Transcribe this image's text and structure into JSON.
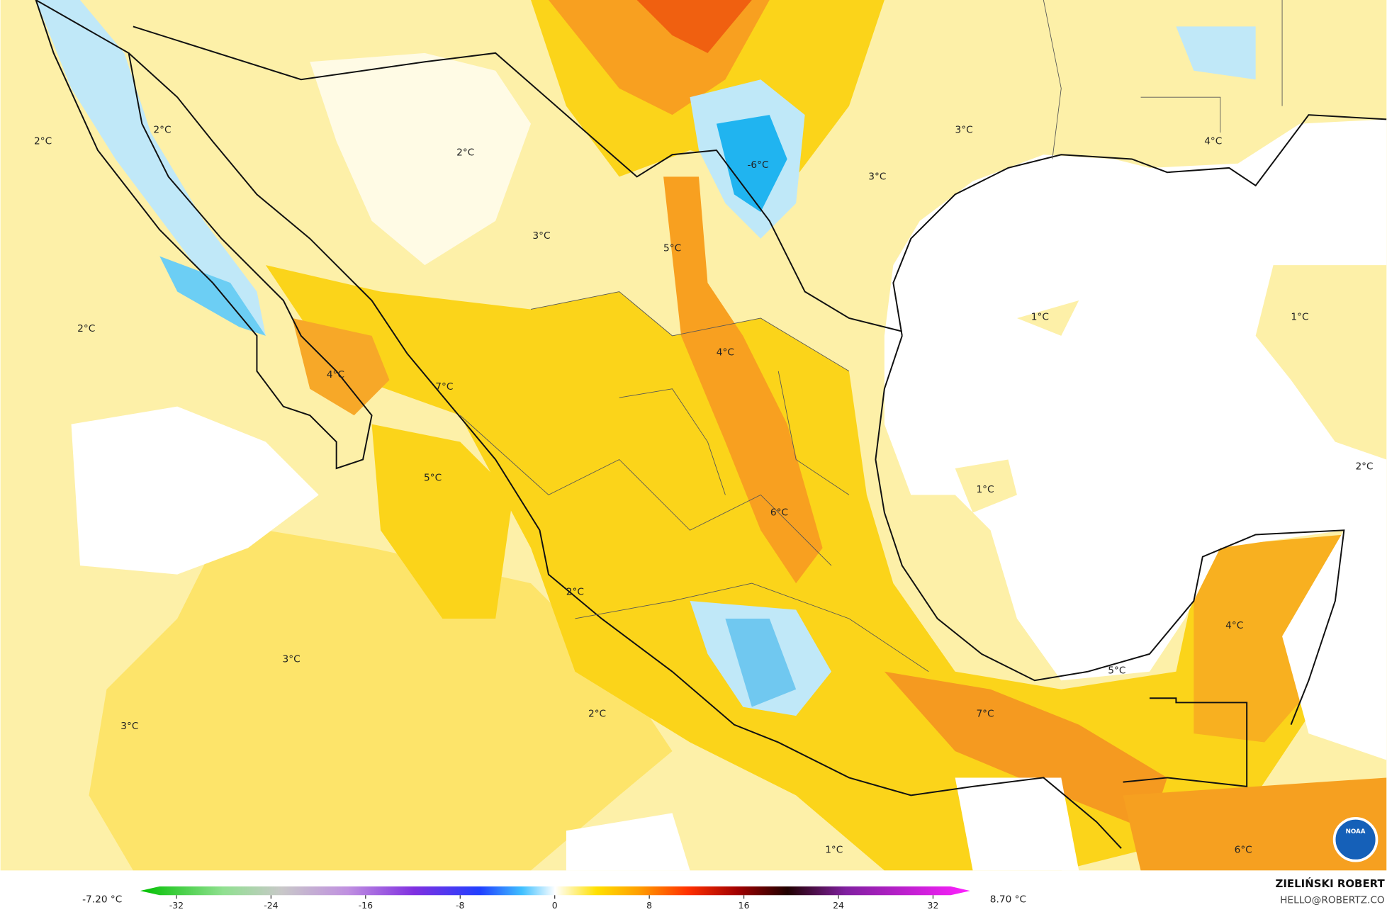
{
  "map": {
    "labels": [
      "2°C",
      "2°C",
      "2°C",
      "3°C",
      "5°C",
      "-6°C",
      "3°C",
      "3°C",
      "4°C",
      "2°C",
      "4°C",
      "7°C",
      "4°C",
      "1°C",
      "1°C",
      "5°C",
      "1°C",
      "6°C",
      "2°C",
      "2°C",
      "4°C",
      "3°C",
      "5°C",
      "2°C",
      "7°C",
      "3°C",
      "1°C",
      "6°C"
    ]
  },
  "colorbar": {
    "min_label": "-7.20 °C",
    "max_label": "8.70 °C",
    "ticks": [
      -32,
      -24,
      -16,
      -8,
      0,
      8,
      16,
      24,
      32
    ]
  },
  "credit": {
    "name": "ZIELIŃSKI ROBERT",
    "email": "HELLO@ROBERTZ.CO"
  },
  "logo": "NOAA"
}
